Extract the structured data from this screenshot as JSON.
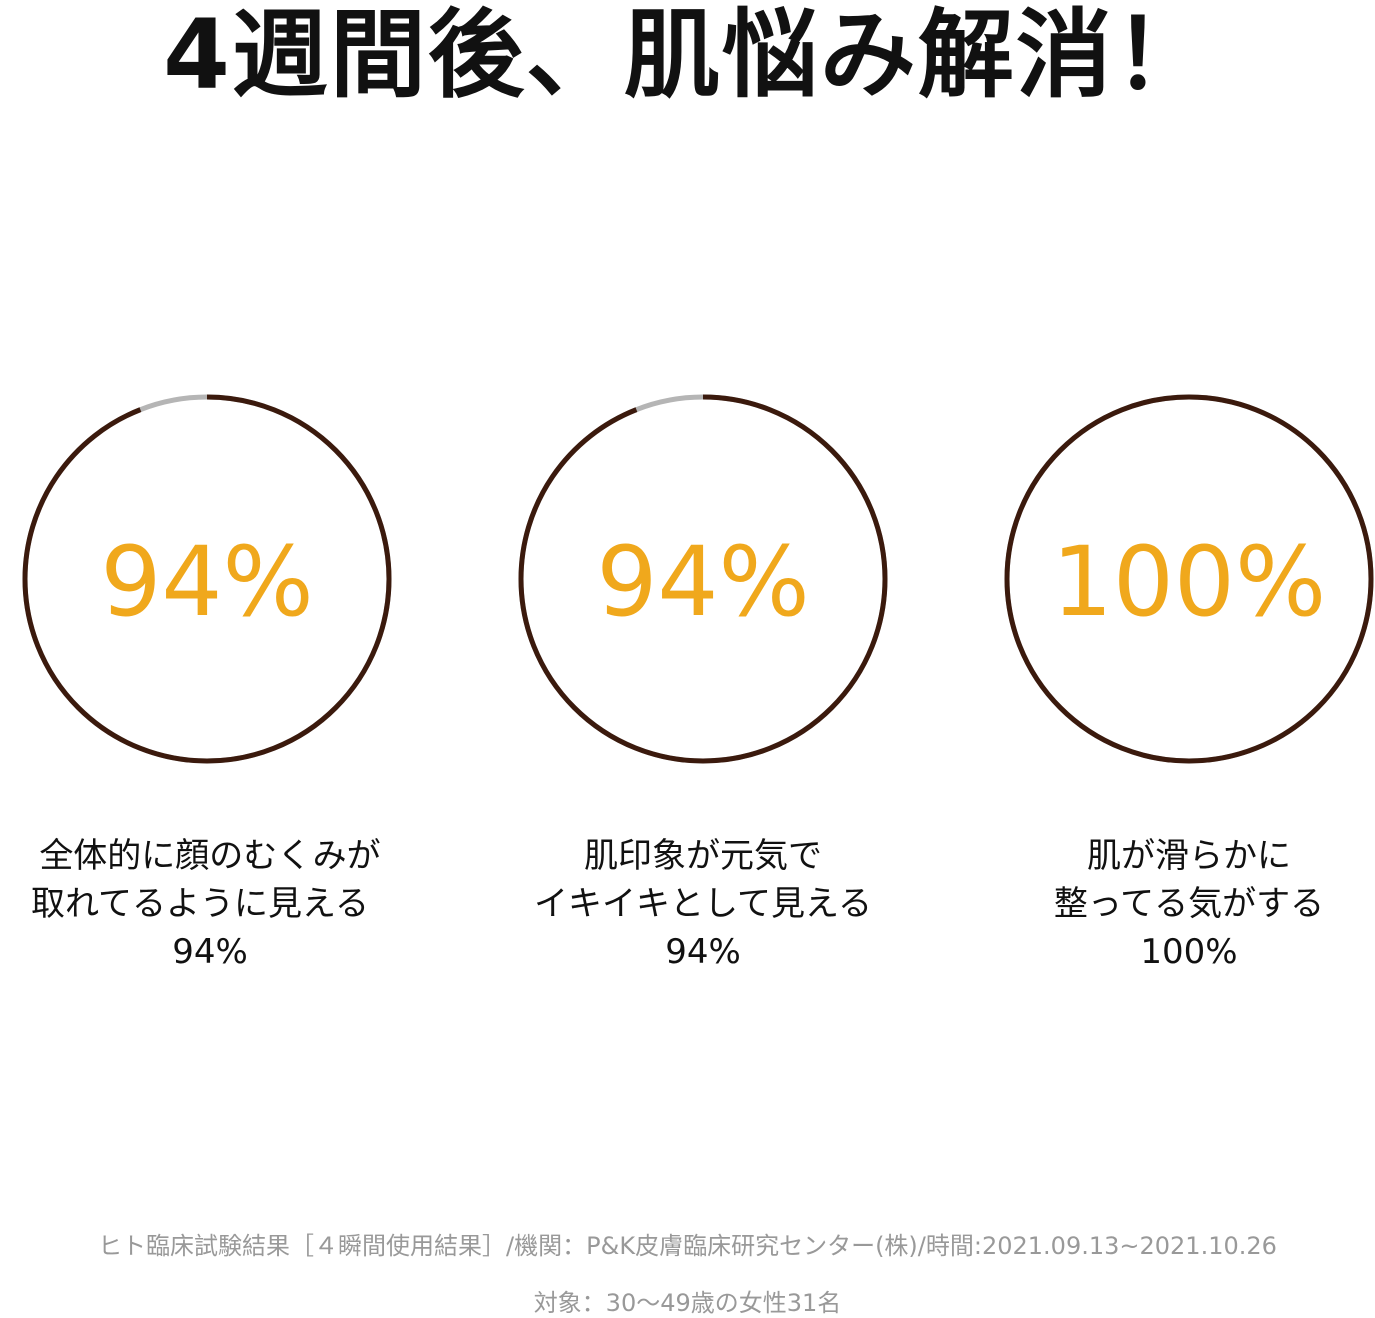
{
  "title": "4週間後、肌悩み解消！",
  "colors": {
    "ring": "#3b1a0d",
    "ring_remainder": "#b5b5b5",
    "value_text": "#f0a81c",
    "text": "#111111",
    "footer_text": "#999999"
  },
  "chart_data": {
    "type": "donut",
    "title": "4週間後、肌悩み解消！",
    "series": [
      {
        "value": 94,
        "label": "94%",
        "caption_lines": [
          "全体的に顔のむくみが",
          "取れてるように見える",
          "94%"
        ]
      },
      {
        "value": 94,
        "label": "94%",
        "caption_lines": [
          "肌印象が元気で",
          "イキイキとして見える",
          "94%"
        ]
      },
      {
        "value": 100,
        "label": "100%",
        "caption_lines": [
          "肌が滑らかに",
          "整ってる気がする",
          "100%"
        ]
      }
    ],
    "max": 100
  },
  "footer": {
    "line1": "ヒト臨床試験結果［４瞬間使用結果］/機関：P&K皮膚臨床研究センター(株)/時間:2021.09.13~2021.10.26",
    "line2": "対象：30〜49歳の女性31名"
  }
}
